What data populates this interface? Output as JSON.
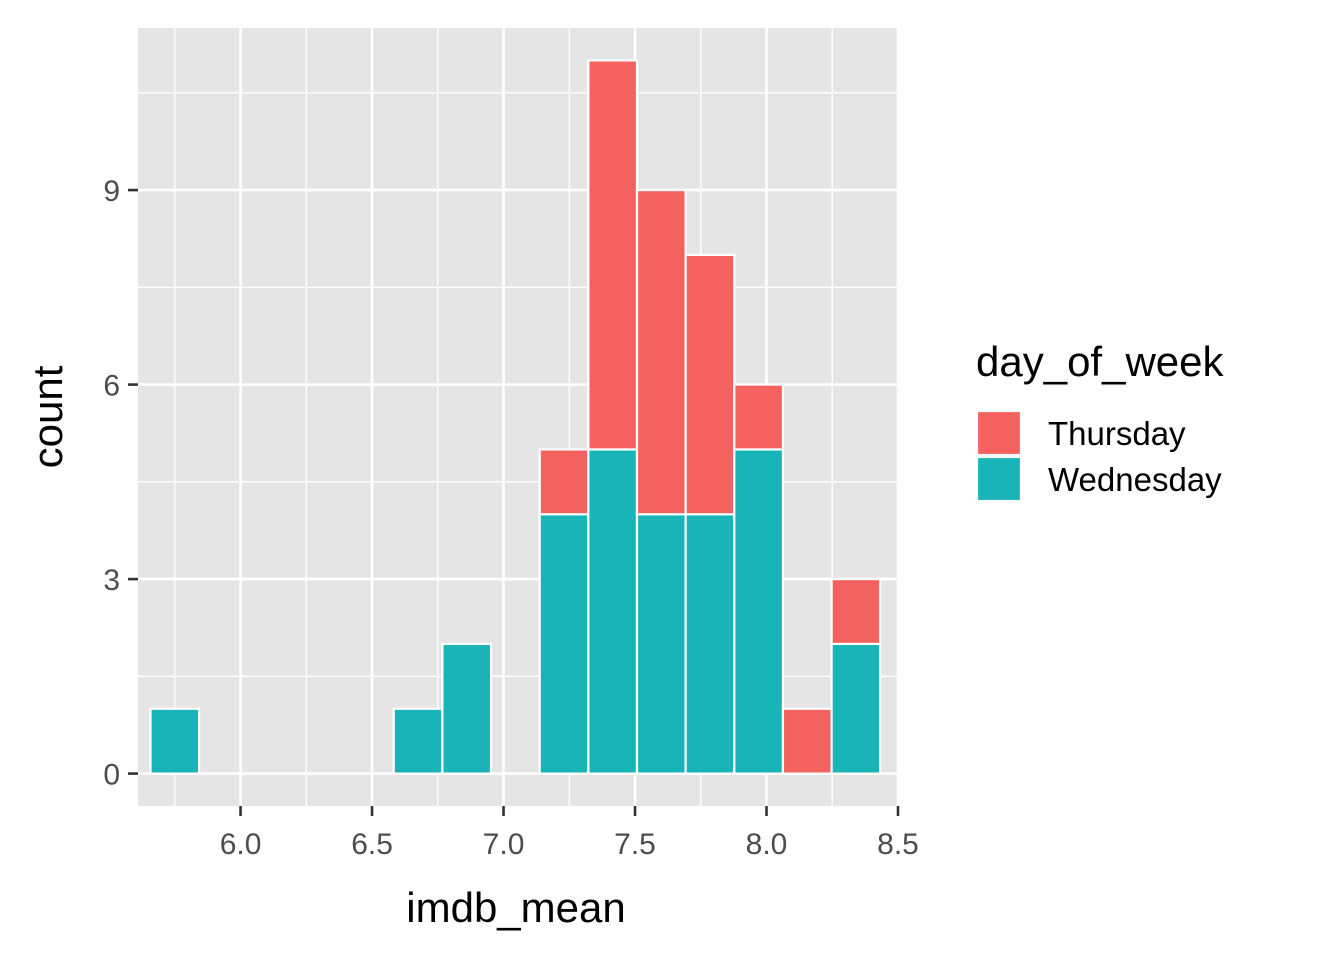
{
  "chart_data": {
    "type": "bar",
    "subtype": "stacked-histogram",
    "xlabel": "imdb_mean",
    "ylabel": "count",
    "xlim": [
      5.61,
      8.5
    ],
    "ylim": [
      -0.5,
      11.5
    ],
    "x_ticks": [
      6.0,
      6.5,
      7.0,
      7.5,
      8.0,
      8.5
    ],
    "x_tick_labels": [
      "6.0",
      "6.5",
      "7.0",
      "7.5",
      "8.0",
      "8.5"
    ],
    "y_ticks": [
      0,
      3,
      6,
      9
    ],
    "y_tick_labels": [
      "0",
      "3",
      "6",
      "9"
    ],
    "grid": true,
    "bin_width": 0.185,
    "bin_centers": [
      5.75,
      5.935,
      6.12,
      6.305,
      6.49,
      6.675,
      6.86,
      7.045,
      7.23,
      7.415,
      7.6,
      7.785,
      7.97,
      8.155,
      8.34
    ],
    "series": [
      {
        "name": "Wednesday",
        "color": "#19B4B8",
        "values": [
          1,
          0,
          0,
          0,
          0,
          1,
          2,
          0,
          4,
          5,
          4,
          4,
          5,
          0,
          2
        ]
      },
      {
        "name": "Thursday",
        "color": "#F4625F",
        "values": [
          0,
          0,
          0,
          0,
          0,
          0,
          0,
          0,
          1,
          6,
          5,
          4,
          1,
          1,
          1
        ]
      }
    ],
    "legend": {
      "title": "day_of_week",
      "placement": "right",
      "entries": [
        {
          "label": "Thursday",
          "color": "#F4625F"
        },
        {
          "label": "Wednesday",
          "color": "#19B4B8"
        }
      ]
    },
    "panel_color": "#E5E5E5",
    "grid_color": "#FFFFFF"
  }
}
